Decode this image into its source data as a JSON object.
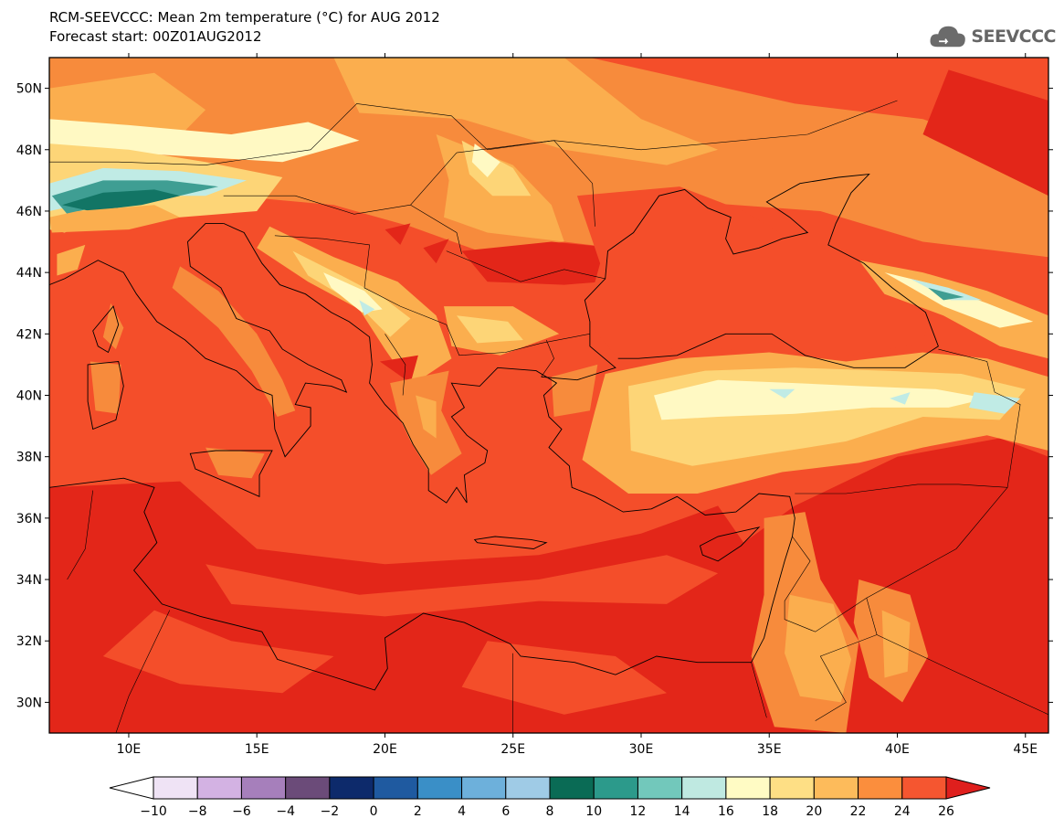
{
  "header": {
    "title": "RCM-SEEVCCC: Mean 2m temperature (°C) for AUG 2012",
    "subtitle": "Forecast start: 00Z01AUG2012"
  },
  "logo": {
    "text": "SEEVCCC",
    "icon": "cloud-icon"
  },
  "map": {
    "lon_range": [
      6.9,
      45.9
    ],
    "lat_range": [
      29.0,
      51.0
    ],
    "lat_ticks": [
      {
        "value": 50,
        "label": "50N"
      },
      {
        "value": 48,
        "label": "48N"
      },
      {
        "value": 46,
        "label": "46N"
      },
      {
        "value": 44,
        "label": "44N"
      },
      {
        "value": 42,
        "label": "42N"
      },
      {
        "value": 40,
        "label": "40N"
      },
      {
        "value": 38,
        "label": "38N"
      },
      {
        "value": 36,
        "label": "36N"
      },
      {
        "value": 34,
        "label": "34N"
      },
      {
        "value": 32,
        "label": "32N"
      },
      {
        "value": 30,
        "label": "30N"
      }
    ],
    "lon_ticks": [
      {
        "value": 10,
        "label": "10E"
      },
      {
        "value": 15,
        "label": "15E"
      },
      {
        "value": 20,
        "label": "20E"
      },
      {
        "value": 25,
        "label": "25E"
      },
      {
        "value": 30,
        "label": "30E"
      },
      {
        "value": 35,
        "label": "35E"
      },
      {
        "value": 40,
        "label": "40E"
      },
      {
        "value": 45,
        "label": "45E"
      }
    ],
    "field_colors": {
      "hot": "#e32619",
      "warm": "#f44e2a",
      "mild": "#f78b3c",
      "light": "#fbae4e",
      "pale": "#fdd577",
      "cream": "#fff9c3",
      "ice": "#c0ebe5",
      "teal": "#3f9e93",
      "deepteal": "#127565"
    }
  },
  "colorbar": {
    "colors": [
      "#efe3f5",
      "#d3b2e3",
      "#a67fbb",
      "#6b4b79",
      "#0d2a6b",
      "#1f5aa0",
      "#3a8fc7",
      "#6db0db",
      "#9fcbe6",
      "#0a6b55",
      "#2c9a8b",
      "#72c8bb",
      "#bfe9e1",
      "#fffbc4",
      "#fedf85",
      "#fdbb5b",
      "#fb8e3d",
      "#f55630"
    ],
    "under_color": "#ffffff",
    "over_color": "#df1f1d",
    "labels": [
      "-10",
      "-8",
      "-6",
      "-4",
      "-2",
      "0",
      "2",
      "4",
      "6",
      "8",
      "10",
      "12",
      "14",
      "16",
      "18",
      "20",
      "22",
      "24",
      "26"
    ]
  }
}
